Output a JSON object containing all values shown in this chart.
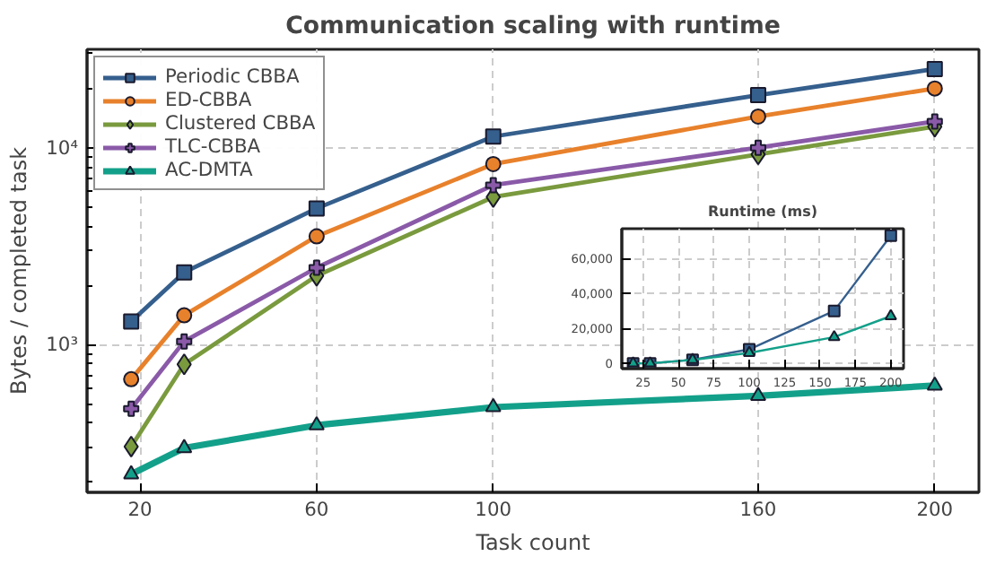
{
  "chart_data": [
    {
      "type": "line",
      "title": "Communication scaling with runtime",
      "xlabel": "Task count",
      "ylabel": "Bytes / completed task",
      "x": [
        18,
        30,
        60,
        100,
        160,
        200
      ],
      "log": "y",
      "grid": true,
      "legend": "top left",
      "line_style": "solid",
      "xlim": [
        8,
        210
      ],
      "ylim": [
        178,
        31600
      ],
      "xticks": [
        20,
        60,
        100,
        160,
        200
      ],
      "yticks": [
        {
          "value": 1000,
          "label": "10³"
        },
        {
          "value": 10000,
          "label": "10⁴"
        }
      ],
      "series": [
        {
          "name": "Periodic CBBA",
          "color": "#355f8d",
          "marker": "square",
          "values": [
            1310,
            2330,
            4920,
            11400,
            18500,
            25100
          ]
        },
        {
          "name": "ED-CBBA",
          "color": "#e8812b",
          "marker": "circle",
          "values": [
            668,
            1410,
            3550,
            8260,
            14400,
            20000
          ]
        },
        {
          "name": "Clustered CBBA",
          "color": "#7a9a3e",
          "marker": "diamond",
          "values": [
            304,
            795,
            2240,
            5620,
            9260,
            12800
          ]
        },
        {
          "name": "TLC-CBBA",
          "color": "#8a5aa8",
          "marker": "cross",
          "values": [
            473,
            1040,
            2460,
            6460,
            10000,
            13600
          ]
        },
        {
          "name": "AC-DMTA",
          "color": "#13a08a",
          "marker": "triangle",
          "values": [
            220,
            299,
            390,
            482,
            550,
            620
          ]
        }
      ]
    },
    {
      "type": "line",
      "title": "Runtime (ms)",
      "x": [
        18,
        30,
        60,
        100,
        160,
        200
      ],
      "grid": true,
      "line_style": "solid",
      "xlim": [
        10,
        209
      ],
      "ylim": [
        -3000,
        77000
      ],
      "xticks": [
        25,
        50,
        75,
        100,
        125,
        150,
        175,
        200
      ],
      "yticks": [
        {
          "value": 0,
          "label": "0"
        },
        {
          "value": 20000,
          "label": "20,000"
        },
        {
          "value": 40000,
          "label": "40,000"
        },
        {
          "value": 60000,
          "label": "60,000"
        }
      ],
      "series": [
        {
          "color": "#355f8d",
          "marker": "square",
          "values": [
            0,
            0,
            2000,
            8000,
            30000,
            73000
          ]
        },
        {
          "color": "#13a08a",
          "marker": "triangle",
          "values": [
            0,
            0,
            2000,
            6000,
            15000,
            27000
          ]
        }
      ]
    }
  ]
}
